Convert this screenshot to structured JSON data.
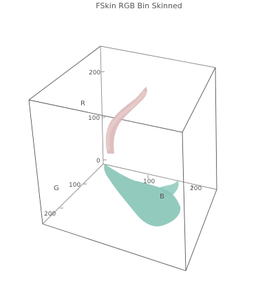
{
  "chart_data": {
    "type": "scatter",
    "dimensions": 3,
    "title": "FSkin RGB Bin Skinned",
    "axes": {
      "r": {
        "label": "R",
        "ticks": [
          "0",
          "100",
          "200"
        ]
      },
      "g": {
        "label": "G",
        "ticks": [
          "100",
          "200"
        ]
      },
      "b": {
        "label": "B",
        "ticks": [
          "100",
          "200"
        ]
      }
    },
    "grid": false,
    "series": [
      {
        "color": "#d8b4b4",
        "points_rgb": [
          [
            210,
            160,
            140
          ],
          [
            200,
            150,
            130
          ],
          [
            190,
            140,
            120
          ],
          [
            180,
            130,
            110
          ],
          [
            170,
            120,
            100
          ],
          [
            160,
            110,
            90
          ],
          [
            150,
            100,
            80
          ],
          [
            140,
            90,
            70
          ],
          [
            130,
            80,
            60
          ],
          [
            120,
            75,
            55
          ],
          [
            110,
            70,
            50
          ],
          [
            100,
            60,
            40
          ]
        ]
      },
      {
        "color": "#6fb8a8",
        "points_rgb": [
          [
            0,
            40,
            30
          ],
          [
            0,
            70,
            60
          ],
          [
            0,
            100,
            90
          ],
          [
            0,
            130,
            120
          ],
          [
            0,
            160,
            150
          ],
          [
            0,
            190,
            170
          ],
          [
            0,
            210,
            190
          ],
          [
            0,
            180,
            220
          ],
          [
            0,
            150,
            200
          ]
        ]
      }
    ]
  }
}
